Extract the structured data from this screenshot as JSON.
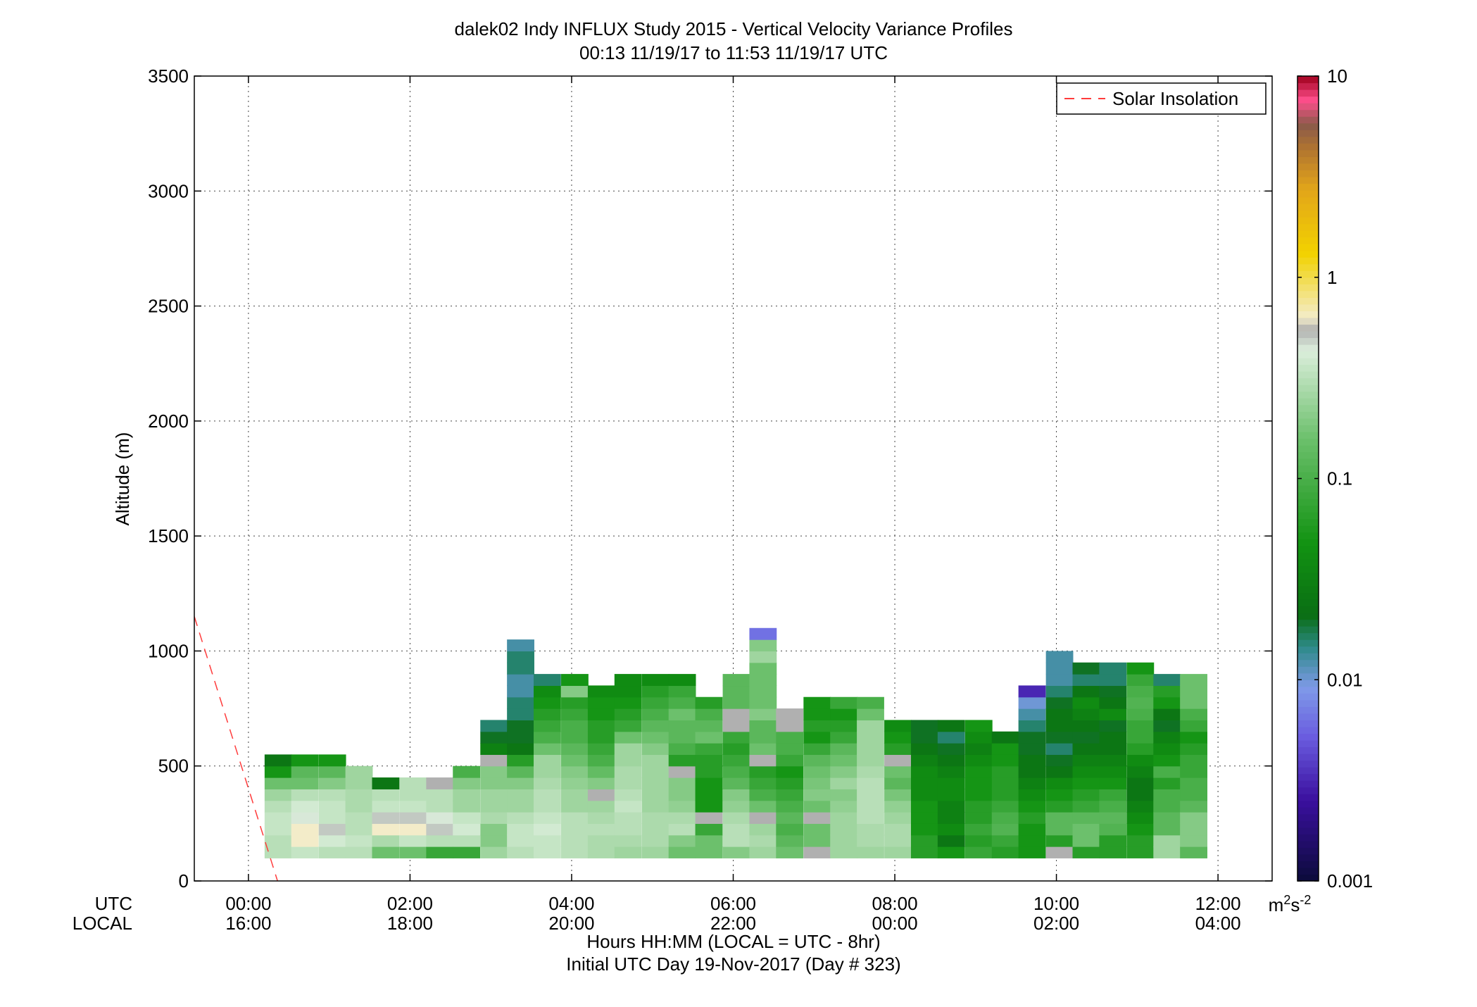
{
  "chart_data": {
    "type": "heatmap",
    "title": "dalek02 Indy INFLUX Study 2015 - Vertical Velocity Variance Profiles",
    "subtitle": "00:13 11/19/17 to 11:53 11/19/17  UTC",
    "ylabel": "Altitude (m)",
    "xlabel": "Hours HH:MM  (LOCAL = UTC - 8hr)",
    "xlabel2": "Initial UTC Day 19-Nov-2017 (Day # 323)",
    "row_label_utc": "UTC",
    "row_label_local": "LOCAL",
    "xlim_hours": [
      -0.67,
      12.67
    ],
    "ylim": [
      0,
      3500
    ],
    "grid": true,
    "y_ticks": [
      {
        "value": 0,
        "label": "0"
      },
      {
        "value": 500,
        "label": "500"
      },
      {
        "value": 1000,
        "label": "1000"
      },
      {
        "value": 1500,
        "label": "1500"
      },
      {
        "value": 2000,
        "label": "2000"
      },
      {
        "value": 2500,
        "label": "2500"
      },
      {
        "value": 3000,
        "label": "3000"
      },
      {
        "value": 3500,
        "label": "3500"
      }
    ],
    "x_ticks": [
      {
        "value": 0,
        "utc": "00:00",
        "local": "16:00"
      },
      {
        "value": 2,
        "utc": "02:00",
        "local": "18:00"
      },
      {
        "value": 4,
        "utc": "04:00",
        "local": "20:00"
      },
      {
        "value": 6,
        "utc": "06:00",
        "local": "22:00"
      },
      {
        "value": 8,
        "utc": "08:00",
        "local": "00:00"
      },
      {
        "value": 10,
        "utc": "10:00",
        "local": "02:00"
      },
      {
        "value": 12,
        "utc": "12:00",
        "local": "04:00"
      }
    ],
    "legend": {
      "label": "Solar Insolation",
      "placement": "top-right",
      "color": "#ff3b3b"
    },
    "solar_insolation_line": {
      "x": [
        -0.67,
        0.36
      ],
      "y": [
        1150,
        0
      ]
    },
    "colorbar": {
      "scale": "log",
      "range": [
        0.001,
        10
      ],
      "ticks": [
        {
          "value": 10,
          "label": "10"
        },
        {
          "value": 1,
          "label": "1"
        },
        {
          "value": 0.1,
          "label": "0.1"
        },
        {
          "value": 0.01,
          "label": "0.01"
        },
        {
          "value": 0.001,
          "label": "0.001"
        }
      ],
      "units": "m2s-2",
      "units_base": "m",
      "units_exp1": "2",
      "units_mid": "s",
      "units_exp2": "-2",
      "gray_value": "missing / low-SNR",
      "colors": [
        {
          "at": 0.0,
          "color": "#0b0b3a"
        },
        {
          "at": 0.1,
          "color": "#3a0f9e"
        },
        {
          "at": 0.18,
          "color": "#6a5de0"
        },
        {
          "at": 0.24,
          "color": "#7f9ae8"
        },
        {
          "at": 0.29,
          "color": "#2e8a8a"
        },
        {
          "at": 0.33,
          "color": "#0a6e14"
        },
        {
          "at": 0.42,
          "color": "#129312"
        },
        {
          "at": 0.55,
          "color": "#6cc06c"
        },
        {
          "at": 0.66,
          "color": "#dceedc"
        },
        {
          "at": 0.685,
          "color": "#b0b0b0"
        },
        {
          "at": 0.7,
          "color": "#f3ecc9"
        },
        {
          "at": 0.78,
          "color": "#f2d200"
        },
        {
          "at": 0.86,
          "color": "#e2a51a"
        },
        {
          "at": 0.91,
          "color": "#b07430"
        },
        {
          "at": 0.94,
          "color": "#8a5a4a"
        },
        {
          "at": 0.97,
          "color": "#ff4f8c"
        },
        {
          "at": 1.0,
          "color": "#a0001c"
        }
      ]
    },
    "bin_height_m": 50,
    "bin_width_hours": 0.333,
    "grid_values": {
      "encoding": "Each column is one time bin starting at its x value (hours UTC); rows start at 100 m altitude going up in 50 m steps; values are log10 of vertical velocity variance in m2s-2; null = no data; G = gray (missing/low-SNR).",
      "columns": [
        {
          "x": 0.2,
          "v": [
            -0.5,
            -0.5,
            -0.45,
            -0.45,
            -0.5,
            -0.6,
            -0.8,
            -1.3,
            -1.6
          ]
        },
        {
          "x": 0.53,
          "v": [
            -0.45,
            -0.2,
            -0.2,
            -0.35,
            -0.4,
            -0.5,
            -0.8,
            -0.9,
            -1.3
          ]
        },
        {
          "x": 0.87,
          "v": [
            -0.5,
            -0.4,
            -0.3,
            -0.45,
            -0.45,
            -0.5,
            -0.7,
            -0.9,
            -1.3
          ]
        },
        {
          "x": 1.2,
          "v": [
            -0.5,
            -0.45,
            -0.5,
            -0.5,
            -0.55,
            -0.55,
            -0.6,
            -0.6
          ]
        },
        {
          "x": 1.53,
          "v": [
            -0.8,
            -0.55,
            -0.2,
            -0.3,
            -0.45,
            -0.5,
            -1.6
          ]
        },
        {
          "x": 1.87,
          "v": [
            -0.8,
            -0.45,
            -0.2,
            -0.3,
            -0.45,
            -0.5,
            -0.5
          ]
        },
        {
          "x": 2.2,
          "v": [
            -1.1,
            -0.5,
            -0.3,
            -0.35,
            -0.5,
            -0.5,
            "G"
          ]
        },
        {
          "x": 2.53,
          "v": [
            -1.1,
            -0.5,
            -0.4,
            -0.45,
            -0.6,
            -0.6,
            -0.7,
            -1.0
          ]
        },
        {
          "x": 2.87,
          "v": [
            -0.6,
            -0.7,
            -0.7,
            -0.55,
            -0.6,
            -0.6,
            -0.7,
            -0.7,
            "G",
            -1.5,
            -1.7,
            -1.8
          ]
        },
        {
          "x": 3.2,
          "v": [
            -0.5,
            -0.45,
            -0.45,
            -0.5,
            -0.6,
            -0.6,
            -0.7,
            -0.9,
            -1.2,
            -1.6,
            -1.7,
            -1.7,
            -1.8,
            -1.8,
            -1.9,
            -1.9,
            -1.8,
            -1.8,
            -1.9
          ]
        },
        {
          "x": 3.53,
          "v": [
            -0.45,
            -0.45,
            -0.4,
            -0.45,
            -0.5,
            -0.5,
            -0.55,
            -0.6,
            -0.6,
            -0.8,
            -1.0,
            -1.1,
            -1.2,
            -1.3,
            -1.4,
            -1.8
          ]
        },
        {
          "x": 3.87,
          "v": [
            -0.5,
            -0.5,
            -0.5,
            -0.5,
            -0.6,
            -0.6,
            -0.65,
            -0.7,
            -0.8,
            -0.9,
            -1.0,
            -1.0,
            -1.1,
            -1.2,
            -0.7,
            -1.3
          ]
        },
        {
          "x": 4.2,
          "v": [
            -0.55,
            -0.55,
            -0.5,
            -0.55,
            -0.6,
            "G",
            -0.7,
            -0.85,
            -1.0,
            -1.1,
            -1.2,
            -1.2,
            -1.3,
            -1.3,
            -1.4
          ]
        },
        {
          "x": 4.53,
          "v": [
            -0.6,
            -0.55,
            -0.5,
            -0.5,
            -0.45,
            -0.5,
            -0.55,
            -0.55,
            -0.6,
            -0.6,
            -0.8,
            -1.1,
            -1.2,
            -1.3,
            -1.4,
            -1.4
          ]
        },
        {
          "x": 4.87,
          "v": [
            -0.6,
            -0.55,
            -0.55,
            -0.55,
            -0.6,
            -0.6,
            -0.6,
            -0.6,
            -0.6,
            -0.7,
            -0.8,
            -0.9,
            -1.0,
            -1.1,
            -1.2,
            -1.4
          ]
        },
        {
          "x": 5.2,
          "v": [
            -0.8,
            -0.7,
            -0.5,
            -0.55,
            -0.65,
            -0.7,
            -0.7,
            "G",
            -1.2,
            -1.0,
            -0.9,
            -0.9,
            -0.8,
            -1.0,
            -1.1,
            -1.4
          ]
        },
        {
          "x": 5.53,
          "v": [
            -0.8,
            -0.8,
            -1.1,
            "G",
            -1.3,
            -1.3,
            -1.3,
            -1.2,
            -1.2,
            -1.1,
            -0.8,
            -0.9,
            -1.0,
            -1.2
          ]
        },
        {
          "x": 5.87,
          "v": [
            -0.7,
            -0.5,
            -0.5,
            -0.55,
            -0.65,
            -0.7,
            -0.9,
            -1.0,
            -1.1,
            -1.2,
            -1.1,
            "G",
            "G",
            -0.9,
            -0.9,
            -0.9
          ]
        },
        {
          "x": 6.2,
          "v": [
            -0.6,
            -0.55,
            -0.6,
            "G",
            -0.8,
            -1.0,
            -1.1,
            -1.2,
            "G",
            -0.8,
            -0.9,
            -0.9,
            -0.7,
            -0.8,
            -0.8,
            -0.8,
            -0.8,
            -0.6,
            -0.7,
            -2.2
          ]
        },
        {
          "x": 6.53,
          "v": [
            -0.8,
            -0.9,
            -1.0,
            -0.9,
            -1.0,
            -1.1,
            -1.2,
            -1.3,
            -1.1,
            -1.0,
            -1.0,
            "G",
            "G"
          ]
        },
        {
          "x": 6.87,
          "v": [
            "G",
            -0.8,
            -0.8,
            "G",
            -0.8,
            -0.7,
            -0.75,
            -0.8,
            -0.9,
            -1.1,
            -1.3,
            -1.2,
            -1.3,
            -1.3
          ]
        },
        {
          "x": 7.2,
          "v": [
            -0.6,
            -0.6,
            -0.6,
            -0.6,
            -0.65,
            -0.7,
            -0.6,
            -0.7,
            -0.8,
            -0.9,
            -1.1,
            -1.2,
            -1.3,
            -1.1
          ]
        },
        {
          "x": 7.53,
          "v": [
            -0.6,
            -0.55,
            -0.55,
            -0.5,
            -0.5,
            -0.5,
            -0.5,
            -0.55,
            -0.6,
            -0.6,
            -0.6,
            -0.6,
            -0.8,
            -1.0
          ]
        },
        {
          "x": 7.87,
          "v": [
            -0.6,
            -0.55,
            -0.55,
            -0.6,
            -0.65,
            -0.75,
            -0.9,
            -0.8,
            "G",
            -1.2,
            -1.3,
            -1.4
          ]
        },
        {
          "x": 8.2,
          "v": [
            -1.2,
            -1.2,
            -1.3,
            -1.3,
            -1.3,
            -1.4,
            -1.4,
            -1.4,
            -1.5,
            -1.6,
            -1.7,
            -1.7
          ]
        },
        {
          "x": 8.53,
          "v": [
            -1.3,
            -1.6,
            -1.4,
            -1.5,
            -1.5,
            -1.4,
            -1.4,
            -1.5,
            -1.6,
            -1.7,
            -1.8,
            -1.6
          ]
        },
        {
          "x": 8.87,
          "v": [
            -1.1,
            -1.2,
            -1.1,
            -1.2,
            -1.2,
            -1.3,
            -1.3,
            -1.3,
            -1.4,
            -1.5,
            -1.4,
            -1.3
          ]
        },
        {
          "x": 9.2,
          "v": [
            -1.2,
            -1.1,
            -0.95,
            -1.0,
            -1.1,
            -1.2,
            -1.2,
            -1.2,
            -1.3,
            -1.3,
            -1.6
          ]
        },
        {
          "x": 9.53,
          "v": [
            -1.3,
            -1.3,
            -1.3,
            -1.2,
            -1.3,
            -1.4,
            -1.5,
            -1.6,
            -1.6,
            -1.7,
            -1.7,
            -1.8,
            -1.9,
            -2.0,
            -2.5
          ]
        },
        {
          "x": 9.87,
          "v": [
            "G",
            -1.2,
            -0.9,
            -0.9,
            -1.2,
            -1.3,
            -1.4,
            -1.6,
            -1.7,
            -1.8,
            -1.7,
            -1.6,
            -1.6,
            -1.7,
            -1.8,
            -1.9,
            -1.9,
            -1.9
          ]
        },
        {
          "x": 10.2,
          "v": [
            -1.2,
            -0.8,
            -0.8,
            -0.9,
            -1.1,
            -1.2,
            -1.3,
            -1.4,
            -1.5,
            -1.6,
            -1.7,
            -1.6,
            -1.5,
            -1.4,
            -1.6,
            -1.8,
            -1.7
          ]
        },
        {
          "x": 10.53,
          "v": [
            -1.2,
            -1.2,
            -0.95,
            -0.9,
            -1.0,
            -1.1,
            -1.3,
            -1.4,
            -1.5,
            -1.6,
            -1.6,
            -1.7,
            -1.4,
            -1.6,
            -1.7,
            -1.8,
            -1.8
          ]
        },
        {
          "x": 10.87,
          "v": [
            -1.2,
            -1.2,
            -1.3,
            -1.4,
            -1.5,
            -1.6,
            -1.6,
            -1.5,
            -1.4,
            -1.2,
            -1.1,
            -1.1,
            -1.0,
            -0.95,
            -1.0,
            -1.1,
            -1.3
          ]
        },
        {
          "x": 11.2,
          "v": [
            -0.6,
            -0.6,
            -0.9,
            -0.9,
            -1.0,
            -1.0,
            -1.2,
            -1.0,
            -1.3,
            -1.4,
            -1.5,
            -1.7,
            -1.6,
            -1.3,
            -1.2,
            -1.8
          ]
        },
        {
          "x": 11.53,
          "v": [
            -0.9,
            -0.7,
            -0.7,
            -0.7,
            -0.9,
            -1.0,
            -1.0,
            -1.1,
            -1.1,
            -1.2,
            -1.3,
            -1.1,
            -1.0,
            -0.8,
            -0.8,
            -0.8
          ]
        }
      ]
    }
  }
}
